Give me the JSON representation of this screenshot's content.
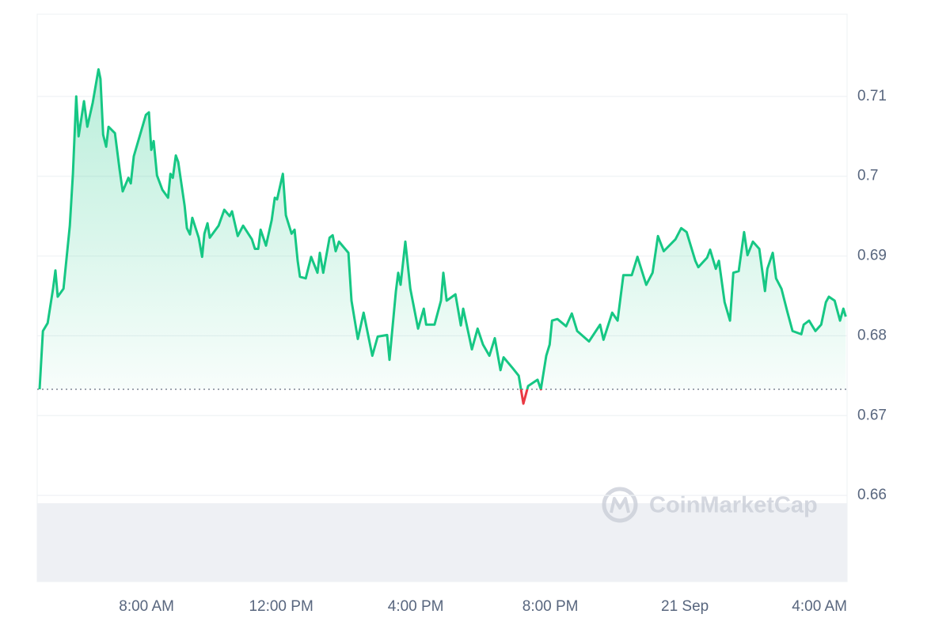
{
  "chart_data": {
    "type": "line",
    "color": "#16c784",
    "down_color": "#ea3943",
    "baseline": 0.6733,
    "watermark": "CoinMarketCap",
    "grid": true,
    "xlim": [
      4.75,
      28.82
    ],
    "ylim": [
      0.6492,
      0.7203
    ],
    "xticks": [
      {
        "value": 8,
        "label": "8:00 AM"
      },
      {
        "value": 12,
        "label": "12:00 PM"
      },
      {
        "value": 16,
        "label": "4:00 PM"
      },
      {
        "value": 20,
        "label": "8:00 PM"
      },
      {
        "value": 24,
        "label": "21 Sep"
      },
      {
        "value": 28,
        "label": "4:00 AM"
      }
    ],
    "yticks": [
      0.66,
      0.67,
      0.68,
      0.69,
      0.7,
      0.71
    ],
    "x": [
      4.82,
      4.92,
      5.06,
      5.22,
      5.29,
      5.36,
      5.53,
      5.72,
      5.81,
      5.91,
      5.98,
      6.14,
      6.24,
      6.4,
      6.57,
      6.63,
      6.71,
      6.8,
      6.87,
      7.06,
      7.2,
      7.29,
      7.46,
      7.53,
      7.62,
      7.98,
      8.07,
      8.14,
      8.21,
      8.31,
      8.47,
      8.64,
      8.71,
      8.78,
      8.87,
      8.94,
      9.13,
      9.2,
      9.29,
      9.36,
      9.55,
      9.65,
      9.72,
      9.81,
      9.88,
      10.14,
      10.31,
      10.47,
      10.54,
      10.71,
      10.87,
      11.13,
      11.22,
      11.32,
      11.39,
      11.55,
      11.72,
      11.81,
      11.88,
      12.05,
      12.14,
      12.31,
      12.4,
      12.49,
      12.56,
      12.73,
      12.89,
      13.08,
      13.15,
      13.25,
      13.44,
      13.53,
      13.62,
      13.72,
      14.0,
      14.09,
      14.28,
      14.45,
      14.71,
      14.87,
      15.15,
      15.22,
      15.41,
      15.48,
      15.55,
      15.69,
      15.84,
      16.07,
      16.24,
      16.31,
      16.56,
      16.75,
      16.82,
      16.92,
      17.18,
      17.34,
      17.41,
      17.67,
      17.84,
      18.0,
      18.19,
      18.35,
      18.52,
      18.61,
      18.87,
      19.06,
      19.2,
      19.34,
      19.62,
      19.72,
      19.88,
      19.98,
      20.05,
      20.21,
      20.47,
      20.64,
      20.8,
      21.15,
      21.48,
      21.58,
      21.84,
      22.0,
      22.17,
      22.42,
      22.59,
      22.85,
      23.04,
      23.2,
      23.37,
      23.72,
      23.89,
      24.05,
      24.31,
      24.4,
      24.66,
      24.75,
      24.92,
      25.01,
      25.18,
      25.34,
      25.44,
      25.6,
      25.76,
      25.86,
      26.02,
      26.21,
      26.38,
      26.45,
      26.61,
      26.71,
      26.87,
      27.04,
      27.2,
      27.46,
      27.53,
      27.69,
      27.88,
      28.05,
      28.19,
      28.28,
      28.45,
      28.61,
      28.71,
      28.78
    ],
    "values": [
      0.6733,
      0.6806,
      0.6816,
      0.6859,
      0.6882,
      0.6849,
      0.6859,
      0.6938,
      0.7003,
      0.71,
      0.705,
      0.7094,
      0.7062,
      0.7092,
      0.7134,
      0.7122,
      0.7052,
      0.7037,
      0.7062,
      0.7054,
      0.7008,
      0.6981,
      0.6998,
      0.6991,
      0.7025,
      0.7077,
      0.708,
      0.7033,
      0.7044,
      0.7001,
      0.6983,
      0.6973,
      0.7003,
      0.6998,
      0.7026,
      0.7018,
      0.6963,
      0.6935,
      0.6927,
      0.6948,
      0.6923,
      0.6899,
      0.6928,
      0.6941,
      0.6923,
      0.6938,
      0.6958,
      0.695,
      0.6956,
      0.6925,
      0.6938,
      0.6921,
      0.6909,
      0.6909,
      0.6933,
      0.6913,
      0.6945,
      0.6973,
      0.6971,
      0.7003,
      0.6951,
      0.6928,
      0.6933,
      0.6894,
      0.6874,
      0.6872,
      0.6899,
      0.6879,
      0.6904,
      0.6879,
      0.6923,
      0.6926,
      0.6906,
      0.6918,
      0.6904,
      0.6844,
      0.6796,
      0.6829,
      0.6775,
      0.6799,
      0.6801,
      0.677,
      0.6856,
      0.6879,
      0.6864,
      0.6918,
      0.6859,
      0.6809,
      0.6834,
      0.6814,
      0.6814,
      0.6844,
      0.6879,
      0.6844,
      0.6852,
      0.6813,
      0.6834,
      0.6783,
      0.6809,
      0.6789,
      0.6775,
      0.6797,
      0.6757,
      0.6773,
      0.676,
      0.675,
      0.6715,
      0.6737,
      0.6745,
      0.6733,
      0.6775,
      0.6789,
      0.6819,
      0.6821,
      0.6812,
      0.6828,
      0.6806,
      0.6793,
      0.6814,
      0.6795,
      0.6829,
      0.6819,
      0.6876,
      0.6876,
      0.6899,
      0.6864,
      0.6879,
      0.6925,
      0.6906,
      0.6921,
      0.6935,
      0.693,
      0.6894,
      0.6886,
      0.6898,
      0.6908,
      0.6884,
      0.6894,
      0.6842,
      0.6819,
      0.6879,
      0.6881,
      0.693,
      0.6901,
      0.6918,
      0.6909,
      0.6856,
      0.6884,
      0.6904,
      0.6872,
      0.6859,
      0.6831,
      0.6806,
      0.6802,
      0.6814,
      0.6819,
      0.6806,
      0.6814,
      0.6842,
      0.6849,
      0.6844,
      0.6819,
      0.6834,
      0.6824
    ]
  }
}
